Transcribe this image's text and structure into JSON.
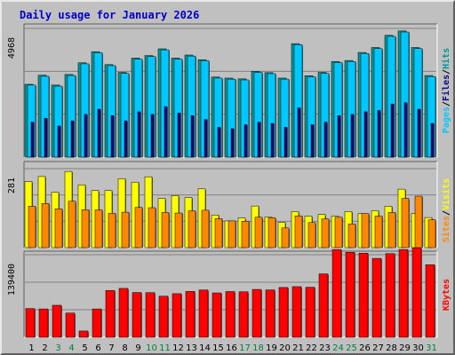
{
  "chart_title": "Daily usage for January 2026",
  "colors": {
    "title": "#0000cc",
    "hits": "#00c8ff",
    "files": "#009999",
    "pages": "#0a0a80",
    "visits": "#ff8800",
    "sites": "#ffff00",
    "kbytes": "#ff0000",
    "weekend": "#008040",
    "weekday": "#000000",
    "plot_bg": "#c0c0c0",
    "grid": "#808080"
  },
  "chart_data": [
    {
      "type": "bar",
      "ylabel_max": "4968",
      "ymax": 4968,
      "series_labels": [
        "Pages",
        "Files",
        "Hits"
      ],
      "series": [
        {
          "name": "Hits",
          "values": [
            2780,
            3120,
            2740,
            3150,
            3600,
            4030,
            3530,
            3230,
            3780,
            3880,
            4140,
            3780,
            3900,
            3720,
            3050,
            3010,
            2980,
            3270,
            3220,
            3010,
            4340,
            3100,
            3230,
            3650,
            3690,
            4000,
            4190,
            4660,
            4830,
            4190,
            3110
          ]
        },
        {
          "name": "Files",
          "values": [
            2810,
            3160,
            2780,
            3190,
            3640,
            4070,
            3570,
            3270,
            3820,
            3920,
            4180,
            3820,
            3940,
            3760,
            3090,
            3050,
            3020,
            3310,
            3260,
            3050,
            4380,
            3140,
            3270,
            3690,
            3730,
            4040,
            4230,
            4700,
            4870,
            4230,
            3150
          ]
        },
        {
          "name": "Pages",
          "values": [
            1350,
            1500,
            1200,
            1400,
            1650,
            1850,
            1600,
            1400,
            1750,
            1650,
            1950,
            1700,
            1600,
            1450,
            1150,
            1100,
            1250,
            1350,
            1300,
            1150,
            1900,
            1250,
            1350,
            1600,
            1650,
            1750,
            1800,
            2050,
            2100,
            1850,
            1300
          ]
        }
      ]
    },
    {
      "type": "bar",
      "ylabel_max": "281",
      "ymax": 281,
      "series_labels": [
        "Sites",
        "Visits"
      ],
      "series": [
        {
          "name": "Visits",
          "values": [
            235,
            253,
            197,
            271,
            223,
            203,
            203,
            245,
            233,
            252,
            175,
            185,
            178,
            209,
            116,
            95,
            105,
            148,
            109,
            90,
            128,
            112,
            118,
            112,
            128,
            121,
            131,
            147,
            208,
            121,
            107
          ]
        },
        {
          "name": "Sites",
          "values": [
            147,
            157,
            138,
            165,
            135,
            134,
            122,
            126,
            143,
            142,
            125,
            123,
            131,
            133,
            103,
            95,
            94,
            108,
            106,
            70,
            113,
            89,
            102,
            108,
            84,
            121,
            112,
            125,
            175,
            183,
            99
          ]
        }
      ]
    },
    {
      "type": "bar",
      "ylabel_max": "139400",
      "ymax": 139400,
      "series_labels": [
        "KBytes"
      ],
      "series": [
        {
          "name": "KBytes",
          "values": [
            48500,
            47800,
            54000,
            40800,
            10600,
            47800,
            79000,
            82500,
            75600,
            75400,
            69300,
            73600,
            77400,
            79800,
            74900,
            77200,
            76800,
            80800,
            80000,
            84100,
            85500,
            84500,
            107000,
            148000,
            143500,
            142000,
            133200,
            141300,
            148000,
            151000,
            122500
          ]
        }
      ]
    }
  ],
  "days": {
    "labels": [
      "1",
      "2",
      "3",
      "4",
      "5",
      "6",
      "7",
      "8",
      "9",
      "10",
      "11",
      "12",
      "13",
      "14",
      "15",
      "16",
      "17",
      "18",
      "19",
      "20",
      "21",
      "22",
      "23",
      "24",
      "25",
      "26",
      "27",
      "28",
      "29",
      "30",
      "31"
    ],
    "weekend": [
      false,
      false,
      true,
      true,
      false,
      false,
      false,
      false,
      false,
      true,
      true,
      false,
      false,
      false,
      false,
      false,
      true,
      true,
      false,
      false,
      false,
      false,
      false,
      true,
      true,
      false,
      false,
      false,
      false,
      false,
      true
    ]
  }
}
